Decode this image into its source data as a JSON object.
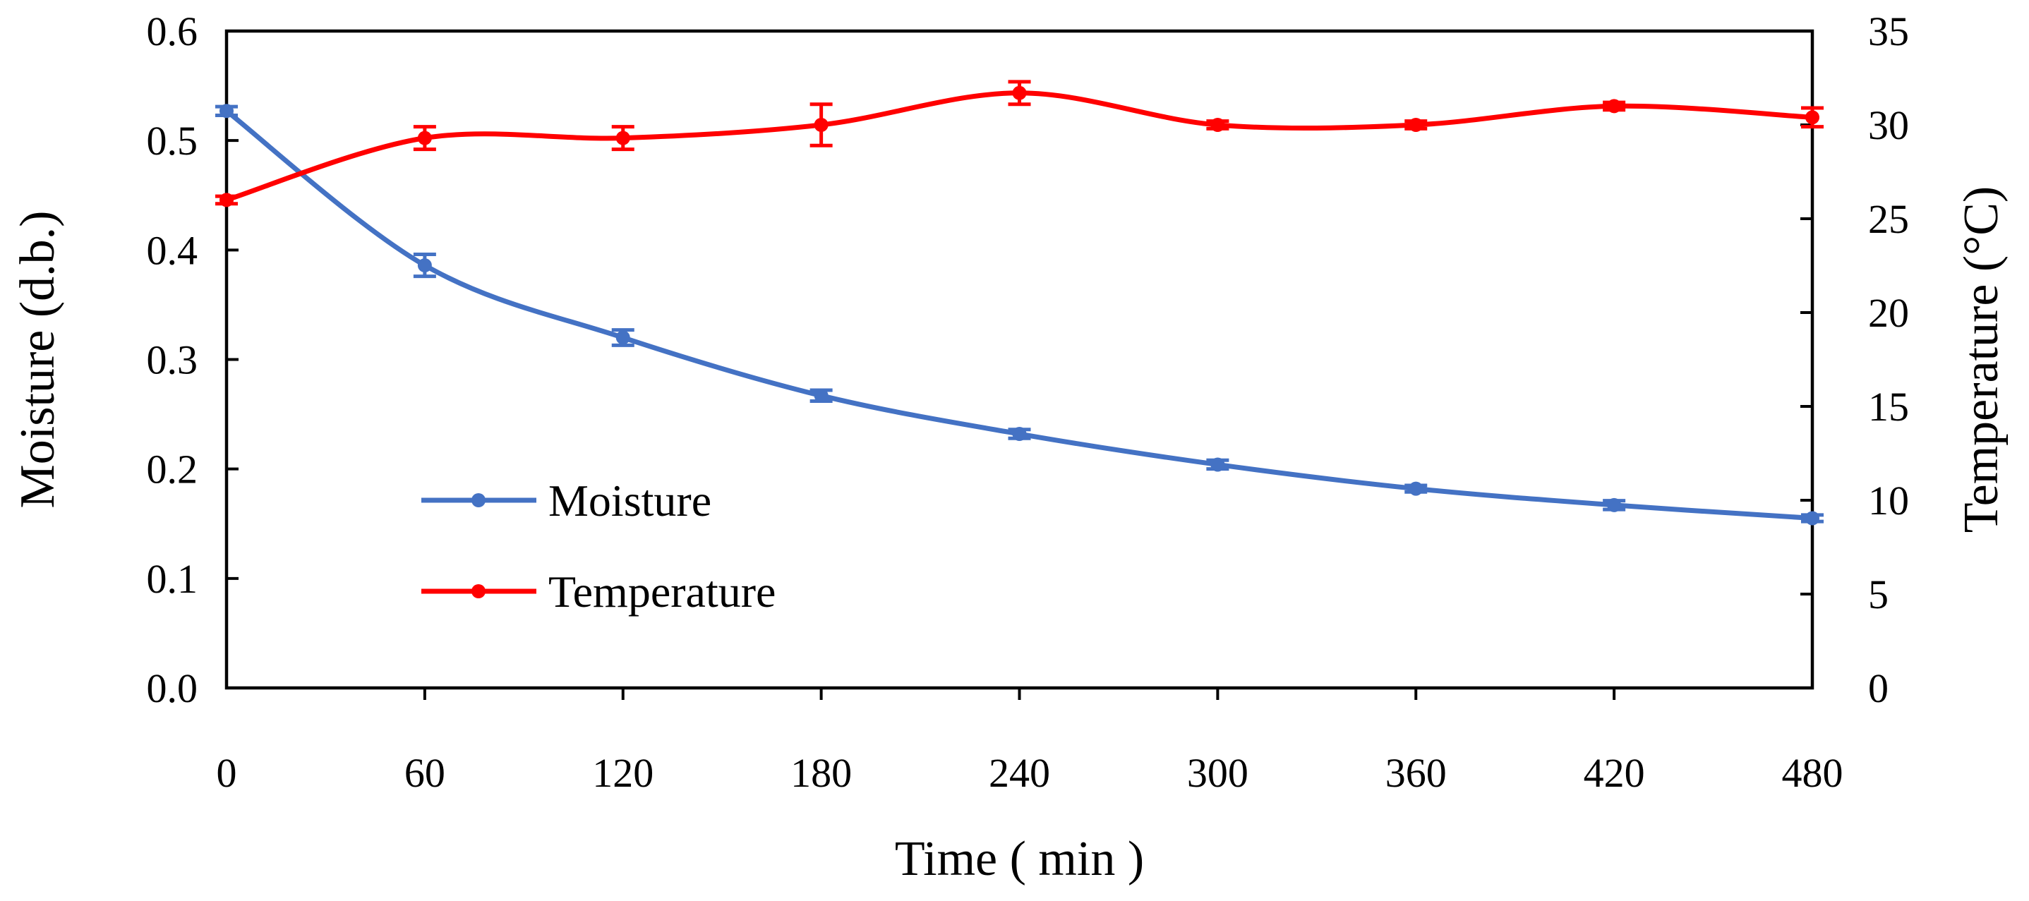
{
  "chart_data": {
    "type": "line",
    "title": "",
    "xlabel": "Time ( min )",
    "ylabel": "Moisture (d.b.)",
    "y2label": "Temperature (°C)",
    "xlim": [
      0,
      480
    ],
    "ylim": [
      0,
      0.6
    ],
    "y2lim": [
      0,
      35
    ],
    "xticks": [
      0,
      60,
      120,
      180,
      240,
      300,
      360,
      420,
      480
    ],
    "xtick_labels": [
      "0",
      "60",
      "120",
      "180",
      "240",
      "300",
      "360",
      "420",
      "480"
    ],
    "yticks": [
      0,
      0.1,
      0.2,
      0.3,
      0.4,
      0.5,
      0.6
    ],
    "ytick_labels": [
      "0.0",
      "0.1",
      "0.2",
      "0.3",
      "0.4",
      "0.5",
      "0.6"
    ],
    "y2ticks": [
      0,
      5,
      10,
      15,
      20,
      25,
      30,
      35
    ],
    "y2tick_labels": [
      "0",
      "5",
      "10",
      "15",
      "20",
      "25",
      "30",
      "35"
    ],
    "grid": false,
    "legend_position": "lower-left",
    "series": [
      {
        "name": "Moisture",
        "axis": "left",
        "color": "#4472C4",
        "x": [
          0,
          60,
          120,
          180,
          240,
          300,
          360,
          420,
          480
        ],
        "values": [
          0.527,
          0.386,
          0.32,
          0.267,
          0.232,
          0.204,
          0.182,
          0.167,
          0.155
        ],
        "errors": [
          0.004,
          0.01,
          0.007,
          0.005,
          0.004,
          0.004,
          0.003,
          0.004,
          0.003
        ]
      },
      {
        "name": "Temperature",
        "axis": "right",
        "color": "#FF0000",
        "x": [
          0,
          60,
          120,
          180,
          240,
          300,
          360,
          420,
          480
        ],
        "values": [
          26.0,
          29.3,
          29.3,
          30.0,
          31.7,
          30.0,
          30.0,
          31.0,
          30.4
        ],
        "errors": [
          0.2,
          0.6,
          0.6,
          1.1,
          0.6,
          0.2,
          0.2,
          0.2,
          0.5
        ]
      }
    ]
  }
}
